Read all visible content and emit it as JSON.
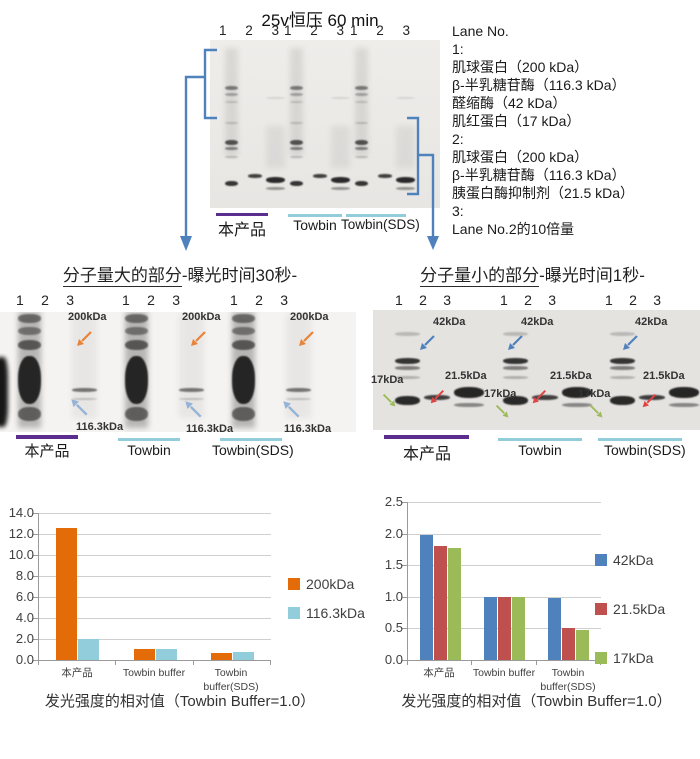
{
  "header": {
    "title": "25v恒压 60 min"
  },
  "lane_numbers": [
    "1",
    "2",
    "3"
  ],
  "buffers": {
    "product": "本产品",
    "towbin": "Towbin",
    "towbin_sds": "Towbin(SDS)"
  },
  "lane_legend": {
    "heading": "Lane No.",
    "lines": [
      "1:",
      "肌球蛋白（200 kDa）",
      "β-半乳糖苷酶（116.3 kDa）",
      "醛缩酶（42 kDa）",
      "肌红蛋白（17 kDa）",
      "2:",
      "肌球蛋白（200 kDa）",
      "β-半乳糖苷酶（116.3 kDa）",
      "胰蛋白酶抑制剂（21.5 kDa）",
      "3:",
      "Lane No.2的10倍量"
    ]
  },
  "blot_large": {
    "title_main": "分子量大的部分",
    "title_suffix": "-曝光时间30秒-",
    "marker_200": "200kDa",
    "marker_116": "116.3kDa"
  },
  "blot_small": {
    "title_main": "分子量小的部分",
    "title_suffix": "-曝光时间1秒-",
    "marker_42": "42kDa",
    "marker_21": "21.5kDa",
    "marker_17": "17kDa"
  },
  "chart_data": [
    {
      "type": "bar",
      "caption": "发光强度的相对值（Towbin Buffer=1.0）",
      "categories": [
        "本产品",
        "Towbin buffer",
        "Towbin buffer(SDS)"
      ],
      "series": [
        {
          "name": "200kDa",
          "color": "#E36C09",
          "values": [
            12.6,
            1.0,
            0.7
          ]
        },
        {
          "name": "116.3kDa",
          "color": "#92CDDC",
          "values": [
            2.0,
            1.0,
            0.75
          ]
        }
      ],
      "ylim": [
        0,
        14
      ],
      "ytick_step": 2,
      "yticks": [
        "14.0",
        "12.0",
        "10.0",
        "8.0",
        "6.0",
        "4.0",
        "2.0",
        "0.0"
      ],
      "grid": true,
      "legend_position": "right"
    },
    {
      "type": "bar",
      "caption": "发光强度的相对值（Towbin Buffer=1.0）",
      "categories": [
        "本产品",
        "Towbin buffer",
        "Towbin buffer(SDS)"
      ],
      "series": [
        {
          "name": "42kDa",
          "color": "#4F81BD",
          "values": [
            1.97,
            1.0,
            0.98
          ]
        },
        {
          "name": "21.5kDa",
          "color": "#C0504D",
          "values": [
            1.8,
            1.0,
            0.51
          ]
        },
        {
          "name": "17kDa",
          "color": "#9BBB59",
          "values": [
            1.77,
            1.0,
            0.48
          ]
        }
      ],
      "ylim": [
        0,
        2.5
      ],
      "ytick_step": 0.5,
      "yticks": [
        "2.5",
        "2.0",
        "1.5",
        "1.0",
        "0.5",
        "0.0"
      ],
      "grid": true,
      "legend_position": "right"
    }
  ]
}
